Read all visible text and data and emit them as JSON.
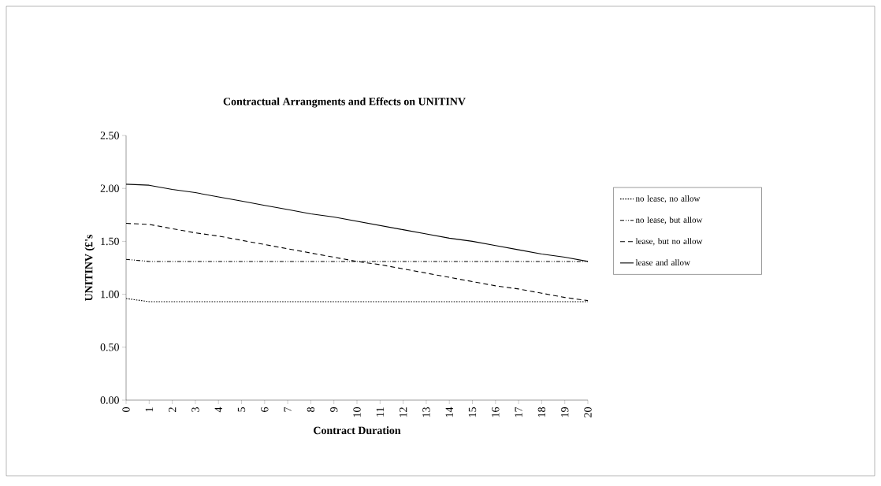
{
  "chart_data": {
    "type": "line",
    "title": "Contractual Arrangments and Effects on UNITINV",
    "xlabel": "Contract Duration",
    "ylabel": "UNITINV (£'s",
    "categories": [
      "0",
      "1",
      "2",
      "3",
      "4",
      "5",
      "6",
      "7",
      "8",
      "9",
      "10",
      "11",
      "12",
      "13",
      "14",
      "15",
      "16",
      "17",
      "18",
      "19",
      "20"
    ],
    "ylim": [
      0,
      2.5
    ],
    "yticks": [
      {
        "value": 0,
        "label": "0.00"
      },
      {
        "value": 0.5,
        "label": "0.50"
      },
      {
        "value": 1,
        "label": "1.00"
      },
      {
        "value": 1.5,
        "label": "1.50"
      },
      {
        "value": 2,
        "label": "2.00"
      },
      {
        "value": 2.5,
        "label": "2.50"
      }
    ],
    "legend": "right",
    "grid": false,
    "marker": "none",
    "series": [
      {
        "name": "no lease, no allow",
        "color": "#000000",
        "line_style": "dotted",
        "values": [
          0.96,
          0.93,
          0.93,
          0.93,
          0.93,
          0.93,
          0.93,
          0.93,
          0.93,
          0.93,
          0.93,
          0.93,
          0.93,
          0.93,
          0.93,
          0.93,
          0.93,
          0.93,
          0.93,
          0.93,
          0.93
        ]
      },
      {
        "name": "no lease, but allow",
        "color": "#000000",
        "line_style": "dashdotted",
        "values": [
          1.33,
          1.31,
          1.31,
          1.31,
          1.31,
          1.31,
          1.31,
          1.31,
          1.31,
          1.31,
          1.31,
          1.31,
          1.31,
          1.31,
          1.31,
          1.31,
          1.31,
          1.31,
          1.31,
          1.31,
          1.31
        ]
      },
      {
        "name": "lease, but no allow",
        "color": "#000000",
        "line_style": "dashed",
        "values": [
          1.67,
          1.66,
          1.62,
          1.58,
          1.55,
          1.51,
          1.47,
          1.43,
          1.39,
          1.35,
          1.31,
          1.28,
          1.24,
          1.2,
          1.16,
          1.12,
          1.08,
          1.05,
          1.01,
          0.97,
          0.94
        ]
      },
      {
        "name": "lease and allow",
        "color": "#000000",
        "line_style": "solid",
        "values": [
          2.04,
          2.03,
          1.99,
          1.96,
          1.92,
          1.88,
          1.84,
          1.8,
          1.76,
          1.73,
          1.69,
          1.65,
          1.61,
          1.57,
          1.53,
          1.5,
          1.46,
          1.42,
          1.38,
          1.35,
          1.31
        ]
      }
    ]
  }
}
